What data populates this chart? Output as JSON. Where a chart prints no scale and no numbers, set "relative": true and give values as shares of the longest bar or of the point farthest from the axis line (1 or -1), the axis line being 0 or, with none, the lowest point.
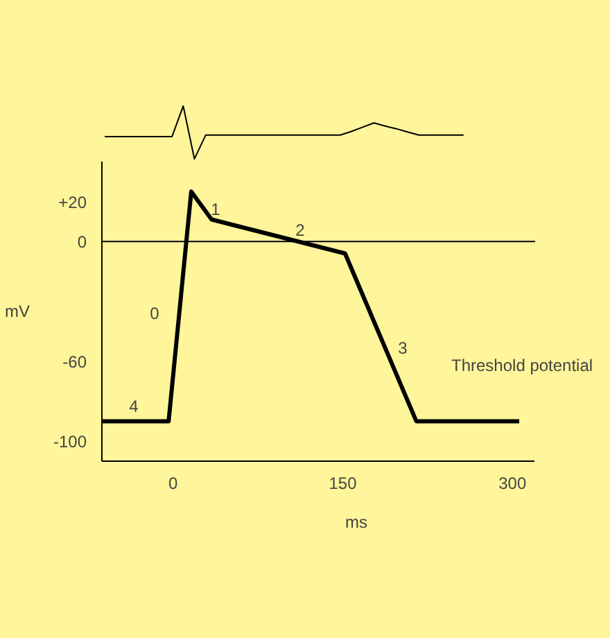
{
  "chart_data": [
    {
      "type": "line",
      "relative": true,
      "tick_labels": false,
      "categories": [
        null,
        null,
        null,
        null,
        null,
        null,
        null,
        null,
        null,
        null,
        null,
        null,
        null,
        null,
        null,
        null,
        null,
        null,
        null,
        null,
        null,
        null,
        null,
        null,
        null,
        null,
        null,
        null,
        null,
        null,
        null,
        null,
        null
      ],
      "series": [
        {
          "color": "#000000",
          "values": [
            0.42,
            0.42,
            0.42,
            0.42,
            0.42,
            0.42,
            0.42,
            1,
            0,
            0.45,
            0.45,
            0.45,
            0.45,
            0.45,
            0.45,
            0.45,
            0.45,
            0.45,
            0.45,
            0.45,
            0.45,
            0.45,
            0.52,
            0.6,
            0.68,
            0.62,
            0.57,
            0.51,
            0.45,
            0.45,
            0.45,
            0.45,
            0.45
          ]
        }
      ]
    },
    {
      "type": "line",
      "xlabel": "ms",
      "ylabel": "mV",
      "xlim": [
        -63,
        320
      ],
      "ylim": [
        -110,
        40
      ],
      "xticks": [
        0,
        150,
        300
      ],
      "yticks": [
        {
          "value": 20,
          "label": "+20"
        },
        0,
        -60,
        -100
      ],
      "series": [
        {
          "color": "#000000",
          "x": [
            -63,
            -4,
            16,
            34,
            152,
            215,
            306
          ],
          "values": [
            -90,
            -90,
            25,
            11,
            -6,
            -90,
            -90
          ]
        }
      ],
      "ref_lines": [
        {
          "axis": "y",
          "value": 0,
          "color": "#000000"
        }
      ],
      "annotations": [
        "0",
        "1",
        "2",
        "3",
        "4",
        "Threshold potential"
      ]
    }
  ]
}
